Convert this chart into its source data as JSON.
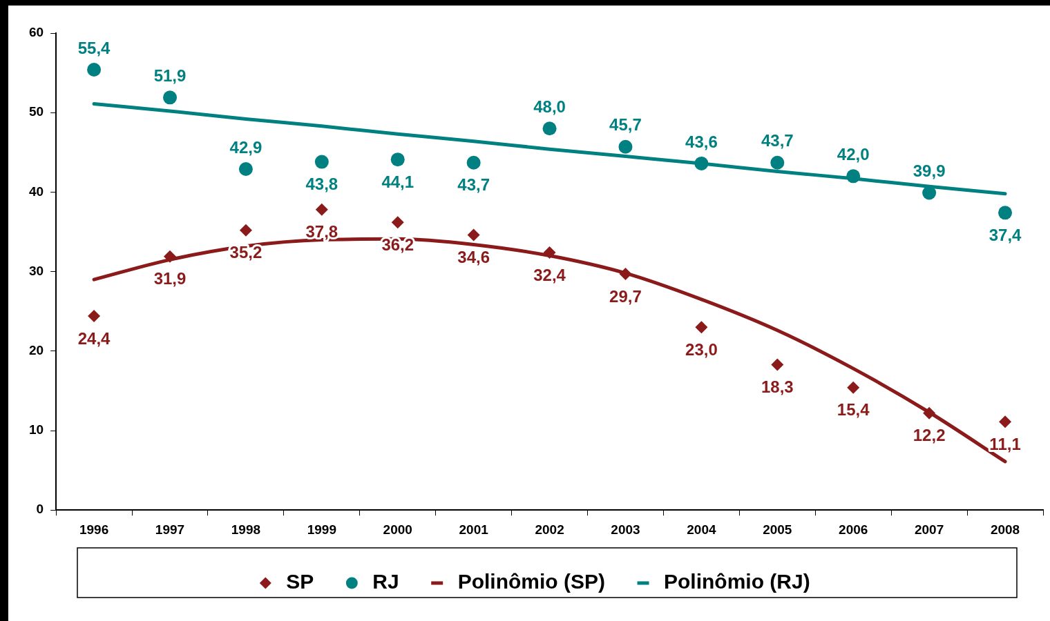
{
  "chart_data": {
    "type": "scatter",
    "categories": [
      "1996",
      "1997",
      "1998",
      "1999",
      "2000",
      "2001",
      "2002",
      "2003",
      "2004",
      "2005",
      "2006",
      "2007",
      "2008"
    ],
    "ylim": [
      0,
      60
    ],
    "yticks": [
      0,
      10,
      20,
      30,
      40,
      50,
      60
    ],
    "grid": false,
    "legend": "bottom",
    "series": [
      {
        "name": "SP",
        "marker": "diamond",
        "color": "#8b1a1a",
        "values": [
          24.4,
          31.9,
          35.2,
          37.8,
          36.2,
          34.6,
          32.4,
          29.7,
          23.0,
          18.3,
          15.4,
          12.2,
          11.1
        ],
        "value_labels": [
          "24,4",
          "31,9",
          "35,2",
          "37,8",
          "36,2",
          "34,6",
          "32,4",
          "29,7",
          "23,0",
          "18,3",
          "15,4",
          "12,2",
          "11,1"
        ]
      },
      {
        "name": "RJ",
        "marker": "circle",
        "color": "#008080",
        "values": [
          55.4,
          51.9,
          42.9,
          43.8,
          44.1,
          43.7,
          48.0,
          45.7,
          43.6,
          43.7,
          42.0,
          39.9,
          37.4
        ],
        "value_labels": [
          "55,4",
          "51,9",
          "42,9",
          "43,8",
          "44,1",
          "43,7",
          "48,0",
          "45,7",
          "43,6",
          "43,7",
          "42,0",
          "39,9",
          "37,4"
        ]
      },
      {
        "name": "Polinômio (SP)",
        "type": "line",
        "marker": "none",
        "line_style": "solid",
        "color": "#8b1a1a",
        "values": [
          29.0,
          31.5,
          33.2,
          34.0,
          34.1,
          33.4,
          32.0,
          29.8,
          26.5,
          22.6,
          17.8,
          12.3,
          6.1
        ]
      },
      {
        "name": "Polinômio (RJ)",
        "type": "line",
        "marker": "none",
        "line_style": "solid",
        "color": "#008080",
        "values": [
          51.1,
          50.2,
          49.2,
          48.3,
          47.3,
          46.4,
          45.4,
          44.5,
          43.6,
          42.6,
          41.7,
          40.7,
          39.8
        ]
      }
    ]
  }
}
